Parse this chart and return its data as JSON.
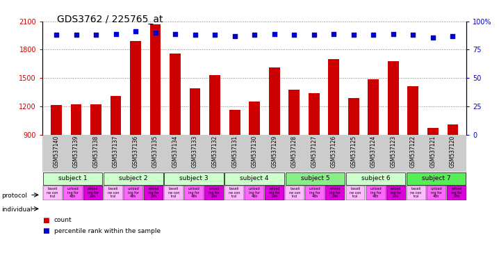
{
  "title": "GDS3762 / 225765_at",
  "samples": [
    "GSM537140",
    "GSM537139",
    "GSM537138",
    "GSM537137",
    "GSM537136",
    "GSM537135",
    "GSM537134",
    "GSM537133",
    "GSM537132",
    "GSM537131",
    "GSM537130",
    "GSM537129",
    "GSM537128",
    "GSM537127",
    "GSM537126",
    "GSM537125",
    "GSM537124",
    "GSM537123",
    "GSM537122",
    "GSM537121",
    "GSM537120"
  ],
  "counts": [
    1215,
    1225,
    1220,
    1310,
    1890,
    2070,
    1760,
    1390,
    1530,
    1165,
    1250,
    1610,
    1380,
    1340,
    1700,
    1290,
    1490,
    1680,
    1410,
    975,
    1010
  ],
  "percentiles": [
    88,
    88,
    88,
    89,
    91,
    90,
    89,
    88,
    88,
    87,
    88,
    89,
    88,
    88,
    89,
    88,
    88,
    89,
    88,
    86,
    87
  ],
  "ymin": 900,
  "ymax": 2100,
  "yticks": [
    900,
    1200,
    1500,
    1800,
    2100
  ],
  "y2ticks": [
    0,
    25,
    50,
    75,
    100
  ],
  "subjects": [
    {
      "label": "subject 1",
      "start": 0,
      "end": 3,
      "color": "#ccffcc"
    },
    {
      "label": "subject 2",
      "start": 3,
      "end": 6,
      "color": "#ccffcc"
    },
    {
      "label": "subject 3",
      "start": 6,
      "end": 9,
      "color": "#ccffcc"
    },
    {
      "label": "subject 4",
      "start": 9,
      "end": 12,
      "color": "#ccffcc"
    },
    {
      "label": "subject 5",
      "start": 12,
      "end": 15,
      "color": "#88ee88"
    },
    {
      "label": "subject 6",
      "start": 15,
      "end": 18,
      "color": "#ccffcc"
    },
    {
      "label": "subject 7",
      "start": 18,
      "end": 21,
      "color": "#55ee55"
    }
  ],
  "protocol_colors": [
    "#ffbbff",
    "#ff66ff",
    "#dd00dd"
  ],
  "protocol_labels": [
    [
      "baseli",
      "ne con",
      "trol"
    ],
    [
      "unload",
      "ing for",
      "48h"
    ],
    [
      "reload",
      "ing for",
      "24h"
    ]
  ],
  "bar_color": "#cc0000",
  "dot_color": "#0000cc",
  "background_color": "#ffffff",
  "xlabels_bg": "#cccccc",
  "title_fontsize": 10,
  "tick_fontsize": 7,
  "label_fontsize": 7
}
